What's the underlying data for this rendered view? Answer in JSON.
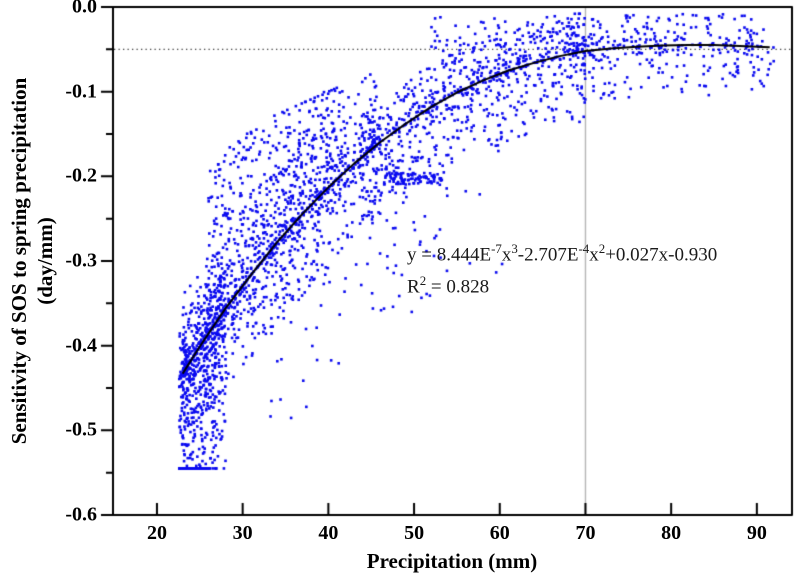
{
  "chart_data": {
    "type": "scatter",
    "title": "",
    "xlabel": "Precipitation (mm)",
    "ylabel_line1": "Sensitivity of SOS to spring precipitation",
    "ylabel_line2": "(day/mm)",
    "xlim": [
      14.87,
      94.1
    ],
    "ylim": [
      -0.6,
      0
    ],
    "x_ticks": [
      20,
      30,
      40,
      50,
      60,
      70,
      80,
      90
    ],
    "x_tick_labels": [
      "20",
      "30",
      "40",
      "50",
      "60",
      "70",
      "80",
      "90"
    ],
    "y_ticks": [
      0,
      -0.1,
      -0.2,
      -0.3,
      -0.4,
      -0.5,
      -0.6
    ],
    "y_tick_labels": [
      "0.0",
      "-0.1",
      "-0.2",
      "-0.3",
      "-0.4",
      "-0.5",
      "-0.6"
    ],
    "y_minor_step": 0.05,
    "grid": "off",
    "legend": "none",
    "reference_lines": {
      "horizontal_dotted_y": -0.05,
      "vertical_gray_x": 70
    },
    "annotation": {
      "equation_plain": "y = 8.444E-7x3-2.707E-4x2+0.027x-0.930",
      "segments": [
        "y = 8.444E",
        "-7",
        "x",
        "3",
        "-2.707E",
        "-4",
        "x",
        "2",
        "+0.027x-0.930"
      ],
      "r2_segments": [
        "R",
        "2",
        " = 0.828"
      ],
      "r_squared_value": 0.828
    },
    "trend_curve": {
      "points": [
        [
          23,
          -0.433
        ],
        [
          25,
          -0.401
        ],
        [
          28,
          -0.356
        ],
        [
          31,
          -0.316
        ],
        [
          34,
          -0.278
        ],
        [
          37,
          -0.244
        ],
        [
          40,
          -0.213
        ],
        [
          43,
          -0.185
        ],
        [
          46,
          -0.16
        ],
        [
          49,
          -0.138
        ],
        [
          52,
          -0.118
        ],
        [
          55,
          -0.101
        ],
        [
          58,
          -0.087
        ],
        [
          61,
          -0.075
        ],
        [
          64,
          -0.066
        ],
        [
          67,
          -0.058
        ],
        [
          70,
          -0.052
        ],
        [
          73,
          -0.049
        ],
        [
          76,
          -0.047
        ],
        [
          79,
          -0.0455
        ],
        [
          82,
          -0.045
        ],
        [
          85,
          -0.045
        ],
        [
          88,
          -0.046
        ],
        [
          91.5,
          -0.0475
        ]
      ]
    },
    "scatter": {
      "seed": 7,
      "point_size": 2.6,
      "y_clamp": [
        -0.545,
        -0.008
      ],
      "regions": [
        {
          "x": [
            22.6,
            28.0
          ],
          "count": 520,
          "up": 0.055,
          "upExp": 1.8,
          "upFrac": 0.3,
          "down": 0.2,
          "downExp": 1.7,
          "stri": {
            "slope": 0.012,
            "spacing": 0.008,
            "p": 0.5
          }
        },
        {
          "x": [
            23.0,
            46.0
          ],
          "count": 1050,
          "up": 0.09,
          "upExp": 2.2,
          "upFrac": 0.45,
          "down": 0.1,
          "downExp": 2.2,
          "xExp": 1.25,
          "stri": {
            "slope": 0.012,
            "spacing": 0.008,
            "p": 0.5
          }
        },
        {
          "x": [
            26.0,
            42.0
          ],
          "count": 430,
          "up": 0.2,
          "upSlope": -0.006,
          "upRef": 26,
          "upExp": 0.9,
          "upFrac": 0.85,
          "down": 0.03,
          "downExp": 1.5,
          "xExp": 1.15,
          "stri": {
            "slope": 0.0045,
            "spacing": 0.007,
            "p": 0.55
          }
        },
        {
          "x": [
            44.0,
            70.0
          ],
          "count": 750,
          "up": 0.05,
          "upExp": 1.8,
          "upFrac": 0.45,
          "down": 0.085,
          "downExp": 2.4
        },
        {
          "x": [
            68.0,
            92.3
          ],
          "count": 320,
          "up": 0.038,
          "upExp": 1.6,
          "upFrac": 0.5,
          "down": 0.06,
          "downExp": 1.8
        },
        {
          "x": [
            44.0,
            53.0
          ],
          "count": 55,
          "up": 0,
          "upExp": 1,
          "upFrac": 0,
          "down": 0.23,
          "downExp": 1.0
        },
        {
          "x": [
            33.0,
            44.0
          ],
          "count": 40,
          "up": 0,
          "upExp": 1,
          "upFrac": 0,
          "down": 0.24,
          "downExp": 1.0
        },
        {
          "x": [
            46.5,
            53.5
          ],
          "count": 85,
          "fixedY": -0.203,
          "jitter": 0.007
        },
        {
          "x": [
            52.0,
            71.0
          ],
          "count": 70,
          "band": [
            -0.055,
            -0.012
          ]
        },
        {
          "x": [
            52.0,
            61.0
          ],
          "count": 14,
          "band": [
            -0.33,
            -0.16
          ]
        }
      ]
    },
    "colors": {
      "scatter": "#0a0af0",
      "trend": "#000000",
      "dotted": "#3d3d3d",
      "grid_gray": "#b6b6b6",
      "axis": "#000000",
      "background": "#ffffff"
    }
  }
}
